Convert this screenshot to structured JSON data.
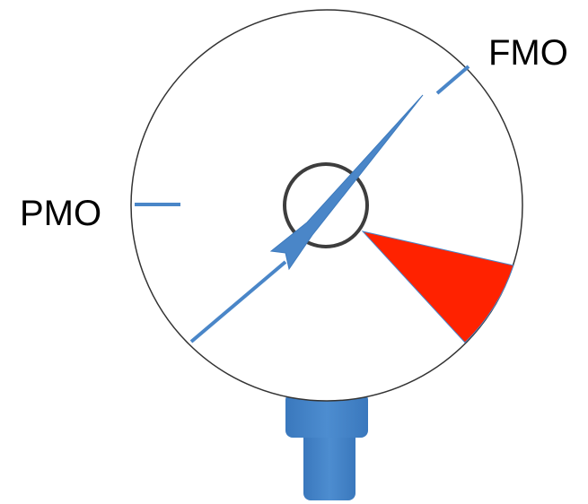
{
  "labels": {
    "fmo": "FMO",
    "pmo": "PMO"
  }
}
